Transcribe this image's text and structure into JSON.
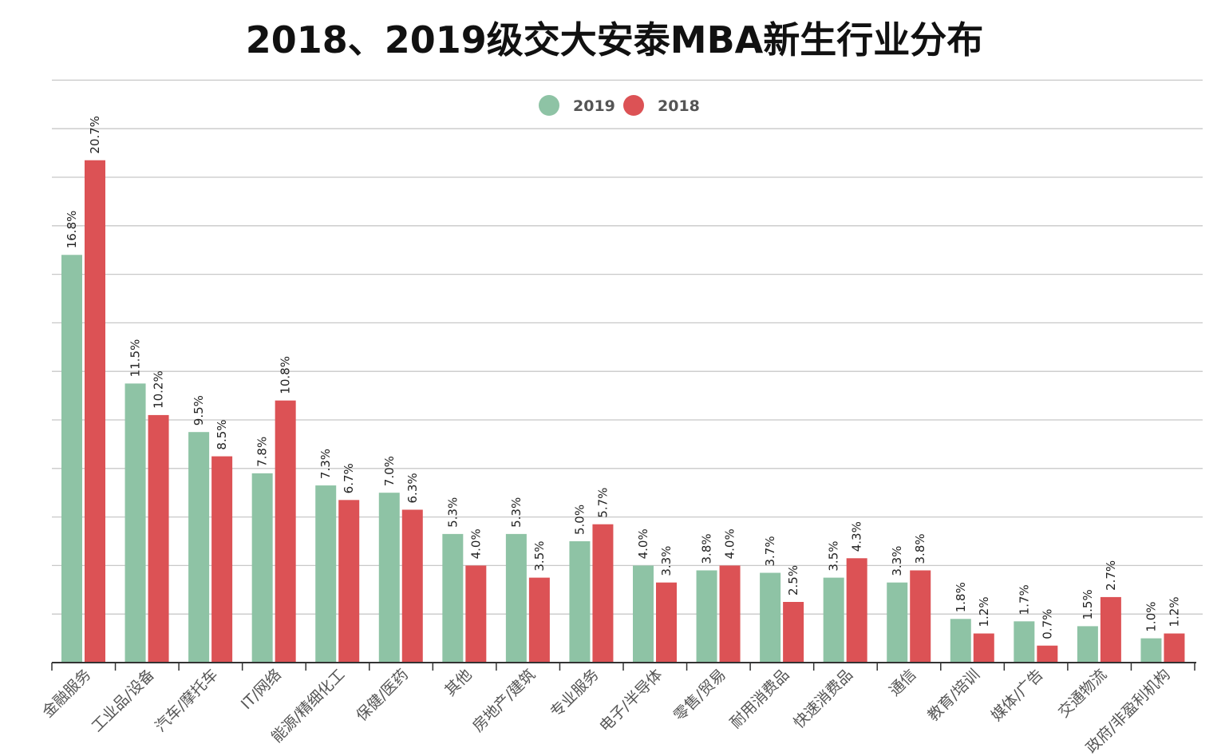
{
  "chart_data": {
    "type": "bar",
    "title": "2018、2019级交大安泰MBA新生行业分布",
    "xlabel": "",
    "ylabel": "",
    "ylim": [
      0,
      24
    ],
    "grid": true,
    "legend_position": "top-center",
    "categories": [
      "金融服务",
      "工业品/设备",
      "汽车/摩托车",
      "IT/网络",
      "能源/精细化工",
      "保健/医药",
      "其他",
      "房地产/建筑",
      "专业服务",
      "电子/半导体",
      "零售/贸易",
      "耐用消费品",
      "快速消费品",
      "通信",
      "教育/培训",
      "媒体/广告",
      "交通物流",
      "政府/非盈利机构"
    ],
    "series": [
      {
        "name": "2019",
        "color": "#8ec3a5",
        "values": [
          16.8,
          11.5,
          9.5,
          7.8,
          7.3,
          7.0,
          5.3,
          5.3,
          5.0,
          4.0,
          3.8,
          3.7,
          3.5,
          3.3,
          1.8,
          1.7,
          1.5,
          1.0
        ],
        "labels": [
          "16.8%",
          "11.5%",
          "9.5%",
          "7.8%",
          "7.3%",
          "7.0%",
          "5.3%",
          "5.3%",
          "5.0%",
          "4.0%",
          "3.8%",
          "3.7%",
          "3.5%",
          "3.3%",
          "1.8%",
          "1.7%",
          "1.5%",
          "1.0%"
        ]
      },
      {
        "name": "2018",
        "color": "#dc5255",
        "values": [
          20.7,
          10.2,
          8.5,
          10.8,
          6.7,
          6.3,
          4.0,
          3.5,
          5.7,
          3.3,
          4.0,
          2.5,
          4.3,
          3.8,
          1.2,
          0.7,
          2.7,
          1.2
        ],
        "labels": [
          "20.7%",
          "10.2%",
          "8.5%",
          "10.8%",
          "6.7%",
          "6.3%",
          "4.0%",
          "3.5%",
          "5.7%",
          "3.3%",
          "4.0%",
          "2.5%",
          "4.3%",
          "3.8%",
          "1.2%",
          "0.7%",
          "2.7%",
          "1.2%"
        ]
      }
    ]
  }
}
